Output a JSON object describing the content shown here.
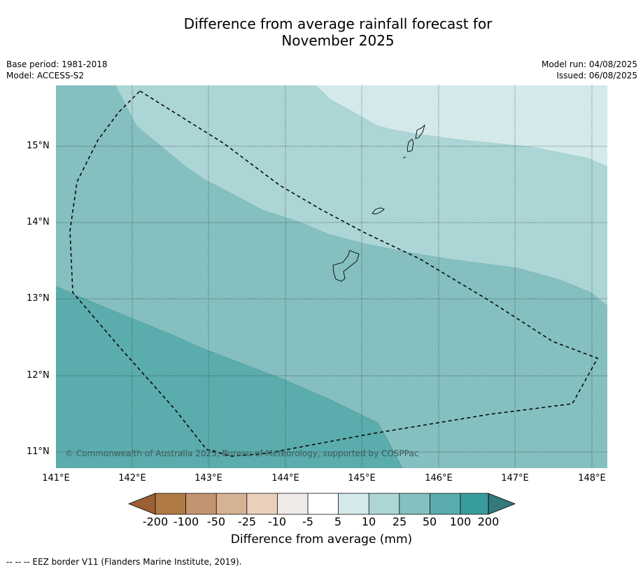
{
  "title_line1": "Difference from average rainfall forecast for",
  "title_line2": "November 2025",
  "meta_left": {
    "base_period": "Base period: 1981-2018",
    "model": "Model: ACCESS-S2"
  },
  "meta_right": {
    "model_run": "Model run: 04/08/2025",
    "issued": "Issued: 06/08/2025"
  },
  "copyright": "© Commonwealth of Australia 2025, Bureau of Meteorology, supported by COSPPac",
  "lat_labels": [
    "15°N",
    "14°N",
    "13°N",
    "12°N",
    "11°N"
  ],
  "lon_labels": [
    "141°E",
    "142°E",
    "143°E",
    "144°E",
    "145°E",
    "146°E",
    "147°E",
    "148°E"
  ],
  "colorbar": {
    "ticks": [
      "-200",
      "-100",
      "-50",
      "-25",
      "-10",
      "-5",
      "5",
      "10",
      "25",
      "50",
      "100",
      "200"
    ],
    "colors": [
      "#9c6034",
      "#b07a45",
      "#c29470",
      "#d6b294",
      "#e8d0bd",
      "#efeae6",
      "#ffffff",
      "#d4eaea",
      "#acd5d5",
      "#85bfbf",
      "#5bacac",
      "#399c9c",
      "#347a7a"
    ],
    "label": "Difference from average (mm)"
  },
  "map_colors": {
    "band_200": "#5bacac",
    "band_50": "#85bfbf",
    "band_25": "#acd5d5",
    "band_10": "#d4eaea"
  },
  "footer": "-- -- -- EEZ border V11 (Flanders Marine Institute, 2019)."
}
